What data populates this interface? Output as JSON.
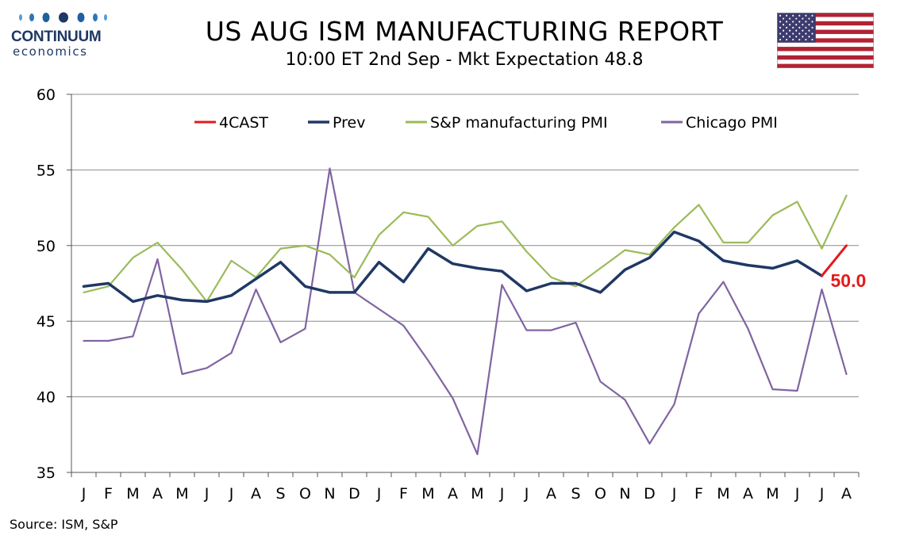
{
  "brand": {
    "name": "CONTINUUM",
    "tagline": "economics",
    "color": "#1f3864"
  },
  "header": {
    "title": "US AUG ISM MANUFACTURING REPORT",
    "subtitle": "10:00 ET 2nd Sep - Mkt Expectation 48.8"
  },
  "flag_icon": "us-flag-icon",
  "source": "Source: ISM, S&P",
  "chart_data": {
    "type": "line",
    "categories": [
      "J",
      "F",
      "M",
      "A",
      "M",
      "J",
      "J",
      "A",
      "S",
      "O",
      "N",
      "D",
      "J",
      "F",
      "M",
      "A",
      "M",
      "J",
      "J",
      "A",
      "S",
      "O",
      "N",
      "D",
      "J",
      "F",
      "M",
      "A",
      "M",
      "J",
      "J",
      "A"
    ],
    "ylim": [
      35,
      60
    ],
    "yticks": [
      "35",
      "40",
      "45",
      "50",
      "55",
      "60"
    ],
    "grid": true,
    "legend_position": "top",
    "series": [
      {
        "name": "4CAST",
        "color": "#e41a1c",
        "width": 3,
        "values": [
          null,
          null,
          null,
          null,
          null,
          null,
          null,
          null,
          null,
          null,
          null,
          null,
          null,
          null,
          null,
          null,
          null,
          null,
          null,
          null,
          null,
          null,
          null,
          null,
          null,
          null,
          null,
          null,
          null,
          null,
          48.0,
          50.0
        ]
      },
      {
        "name": "Prev",
        "color": "#1f3864",
        "width": 3.5,
        "values": [
          47.3,
          47.5,
          46.3,
          46.7,
          46.4,
          46.3,
          46.7,
          47.8,
          48.9,
          47.3,
          46.9,
          46.9,
          48.9,
          47.6,
          49.8,
          48.8,
          48.5,
          48.3,
          47.0,
          47.5,
          47.5,
          46.9,
          48.4,
          49.2,
          50.9,
          50.3,
          49.0,
          48.7,
          48.5,
          49.0,
          48.0,
          null
        ]
      },
      {
        "name": "S&P manufacturing PMI",
        "color": "#9bbb59",
        "width": 2.2,
        "values": [
          46.9,
          47.3,
          49.2,
          50.2,
          48.4,
          46.3,
          49.0,
          47.9,
          49.8,
          50.0,
          49.4,
          47.9,
          50.7,
          52.2,
          51.9,
          50.0,
          51.3,
          51.6,
          49.6,
          47.9,
          47.3,
          48.5,
          49.7,
          49.4,
          51.2,
          52.7,
          50.2,
          50.2,
          52.0,
          52.9,
          49.8,
          53.3
        ]
      },
      {
        "name": "Chicago PMI",
        "color": "#8064a2",
        "width": 2.2,
        "values": [
          43.7,
          43.7,
          44.0,
          49.1,
          41.5,
          41.9,
          42.9,
          47.1,
          43.6,
          44.5,
          55.1,
          46.9,
          45.8,
          44.7,
          42.4,
          39.9,
          36.2,
          47.4,
          44.4,
          44.4,
          44.9,
          41.0,
          39.8,
          36.9,
          39.5,
          45.5,
          47.6,
          44.5,
          40.5,
          40.4,
          47.1,
          41.5
        ]
      }
    ],
    "annotation": {
      "text": "50.0",
      "series": "4CAST",
      "index": 31,
      "color": "#e41a1c"
    }
  }
}
